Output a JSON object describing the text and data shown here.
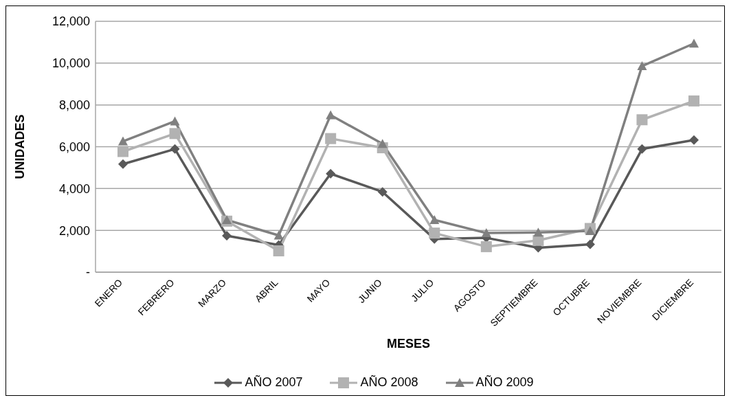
{
  "chart_data": {
    "type": "line",
    "xlabel": "MESES",
    "ylabel": "UNIDADES",
    "categories": [
      "ENERO",
      "FEBRERO",
      "MARZO",
      "ABRIL",
      "MAYO",
      "JUNIO",
      "JULIO",
      "AGOSTO",
      "SEPTIEMBRE",
      "OCTUBRE",
      "NOVIEMBRE",
      "DICIEMBRE"
    ],
    "series": [
      {
        "name": "AÑO 2007",
        "color": "#595959",
        "marker": "diamond",
        "values": [
          5170,
          5890,
          1740,
          1300,
          4710,
          3840,
          1590,
          1640,
          1170,
          1330,
          5890,
          6320
        ]
      },
      {
        "name": "AÑO 2008",
        "color": "#b2b2b2",
        "marker": "square",
        "values": [
          5770,
          6630,
          2440,
          1020,
          6390,
          5950,
          1870,
          1220,
          1520,
          2090,
          7290,
          8190
        ]
      },
      {
        "name": "AÑO 2009",
        "color": "#808080",
        "marker": "triangle",
        "values": [
          6260,
          7220,
          2500,
          1760,
          7510,
          6140,
          2500,
          1870,
          1900,
          1970,
          9860,
          10940
        ]
      }
    ],
    "ylim": [
      0,
      12000
    ],
    "yticks": [
      {
        "value": 0,
        "label": "-"
      },
      {
        "value": 2000,
        "label": "2,000"
      },
      {
        "value": 4000,
        "label": "4,000"
      },
      {
        "value": 6000,
        "label": "6,000"
      },
      {
        "value": 8000,
        "label": "8,000"
      },
      {
        "value": 10000,
        "label": "10,000"
      },
      {
        "value": 12000,
        "label": "12,000"
      }
    ],
    "grid": "y",
    "legend": "bottom",
    "line_style": "solid"
  }
}
